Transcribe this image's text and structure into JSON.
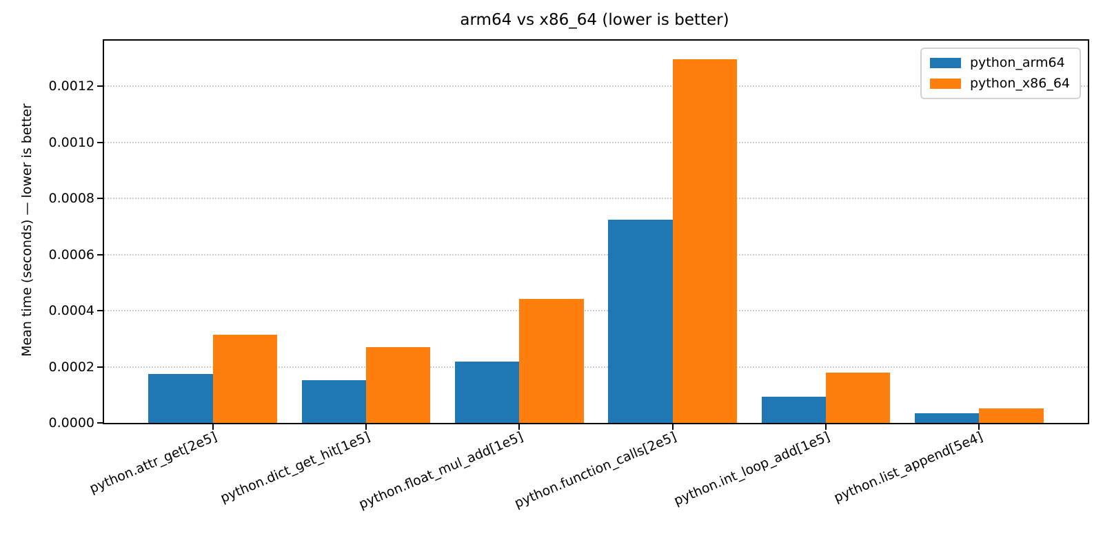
{
  "chart_data": {
    "type": "bar",
    "title": "arm64 vs x86_64 (lower is better)",
    "xlabel": "",
    "ylabel": "Mean time (seconds) — lower is better",
    "categories": [
      "python.attr_get[2e5]",
      "python.dict_get_hit[1e5]",
      "python.float_mul_add[1e5]",
      "python.function_calls[2e5]",
      "python.int_loop_add[1e5]",
      "python.list_append[5e4]"
    ],
    "series": [
      {
        "name": "python_arm64",
        "color": "#1f77b4",
        "values": [
          0.000174,
          0.000151,
          0.000218,
          0.000724,
          9.25e-05,
          3.35e-05
        ]
      },
      {
        "name": "python_x86_64",
        "color": "#ff7f0e",
        "values": [
          0.000314,
          0.00027,
          0.000441,
          0.001295,
          0.00018,
          5.2e-05
        ]
      }
    ],
    "yticks": {
      "values": [
        0.0,
        0.0002,
        0.0004,
        0.0006,
        0.0008,
        0.001,
        0.0012
      ],
      "labels": [
        "0.0000",
        "0.0002",
        "0.0004",
        "0.0006",
        "0.0008",
        "0.0010",
        "0.0012"
      ]
    },
    "ylim": [
      0,
      0.001362
    ],
    "grid": {
      "axis": "y",
      "style": "dotted",
      "color": "#cbcbcb"
    },
    "legend": {
      "position": "upper right",
      "entries": [
        "python_arm64",
        "python_x86_64"
      ]
    },
    "background": "#ffffff"
  }
}
